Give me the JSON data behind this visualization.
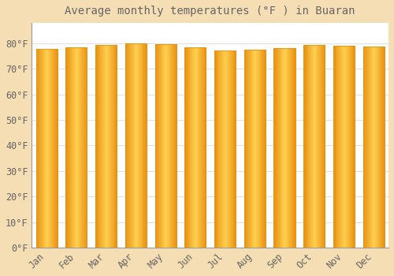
{
  "title": "Average monthly temperatures (°F ) in Buaran",
  "months": [
    "Jan",
    "Feb",
    "Mar",
    "Apr",
    "May",
    "Jun",
    "Jul",
    "Aug",
    "Sep",
    "Oct",
    "Nov",
    "Dec"
  ],
  "values": [
    77.9,
    78.3,
    79.3,
    79.9,
    79.7,
    78.4,
    77.2,
    77.4,
    78.1,
    79.5,
    79.2,
    78.8
  ],
  "bar_color_center": "#FFD050",
  "bar_color_edge": "#E89010",
  "background_color": "#F5DEB3",
  "plot_bg_color": "#FFFFFF",
  "grid_color": "#E0E0E0",
  "text_color": "#666666",
  "ylim": [
    0,
    88
  ],
  "yticks": [
    0,
    10,
    20,
    30,
    40,
    50,
    60,
    70,
    80
  ],
  "title_fontsize": 10,
  "tick_fontsize": 8.5,
  "font_family": "monospace"
}
